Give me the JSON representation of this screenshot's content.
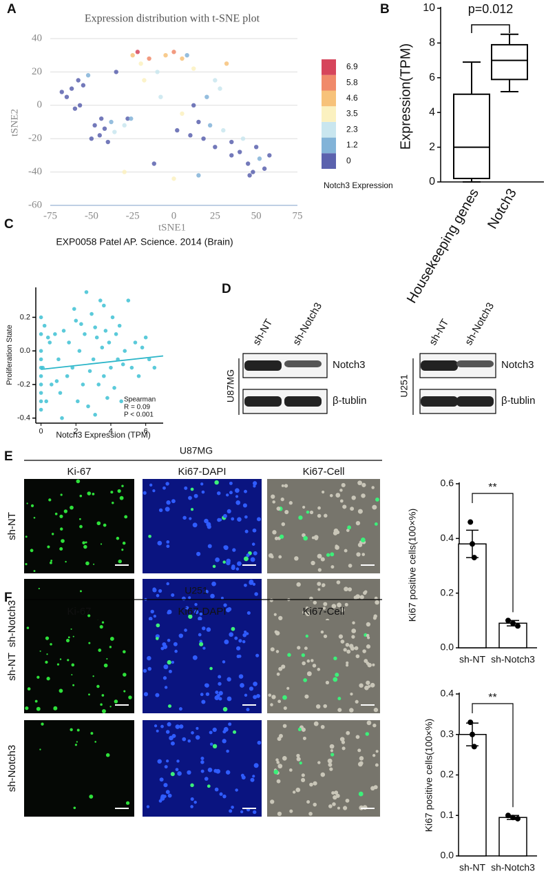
{
  "panel_labels": [
    "A",
    "B",
    "C",
    "D",
    "E",
    "F"
  ],
  "blot": {
    "lanes": [
      "sh-NT",
      "sh-Notch3"
    ],
    "proteins": [
      "Notch3",
      "β-tublin"
    ],
    "cell_lines": [
      "U87MG",
      "U251"
    ]
  },
  "imaging": [
    {
      "cell_line": "U87MG",
      "columns": [
        "Ki-67",
        "Ki67-DAPI",
        "Ki67-Cell"
      ],
      "rows": [
        "sh-NT",
        "sh-Notch3"
      ]
    },
    {
      "cell_line": "U251",
      "columns": [
        "Ki-67",
        "Ki67-DAPI",
        "Ki67-Cell"
      ],
      "rows": [
        "sh-NT",
        "sh-Notch3"
      ]
    }
  ],
  "chart_data": [
    {
      "type": "scatter",
      "title": "Expression distribution with t-SNE plot",
      "xlabel": "tSNE1",
      "ylabel": "tSNE2",
      "caption": "EXP0058 Patel AP. Science. 2014 (Brain)",
      "xlim": [
        -75,
        75
      ],
      "xticks": [
        -75,
        -50,
        -25,
        0,
        25,
        50,
        75
      ],
      "ylim": [
        -60,
        40
      ],
      "yticks": [
        -60,
        -40,
        -20,
        0,
        20,
        40
      ],
      "grid": true,
      "x": [
        -62,
        -58,
        -65,
        -55,
        -60,
        -52,
        -68,
        -57,
        -48,
        -45,
        -42,
        -38,
        -50,
        -44,
        -40,
        -36,
        -30,
        -28,
        -25,
        -22,
        -20,
        -15,
        -10,
        -5,
        0,
        5,
        8,
        12,
        15,
        -18,
        -8,
        2,
        10,
        18,
        22,
        25,
        30,
        35,
        5,
        12,
        20,
        28,
        35,
        40,
        45,
        48,
        52,
        55,
        50,
        46,
        58,
        42,
        -30,
        -12,
        0,
        15,
        32,
        -35,
        -26,
        25
      ],
      "y": [
        10,
        15,
        5,
        12,
        -2,
        18,
        8,
        0,
        -12,
        -18,
        -14,
        -10,
        -20,
        -8,
        -22,
        -16,
        -12,
        -8,
        30,
        32,
        25,
        28,
        20,
        30,
        32,
        28,
        30,
        22,
        -10,
        15,
        5,
        -15,
        -18,
        -20,
        -12,
        -25,
        -15,
        -22,
        -5,
        0,
        5,
        10,
        -30,
        -28,
        -35,
        -40,
        -32,
        -38,
        -25,
        -42,
        -30,
        -20,
        -40,
        -35,
        -44,
        -42,
        25,
        20,
        -8,
        15
      ],
      "values": [
        0,
        0.5,
        0,
        1,
        0,
        2,
        0,
        0,
        0,
        0.5,
        0,
        1.5,
        0,
        0,
        0,
        2.5,
        3,
        0,
        5,
        6.9,
        4,
        6,
        3,
        5.5,
        6.2,
        4.8,
        2,
        3.6,
        0,
        4,
        2.8,
        0,
        0.8,
        0,
        1.5,
        0,
        2.4,
        0,
        3.8,
        0,
        1.3,
        2.5,
        0,
        0.6,
        0,
        0,
        1.4,
        0,
        0,
        0,
        0.5,
        2.3,
        3.7,
        1,
        4.5,
        2,
        5,
        0,
        1.2,
        3
      ],
      "colorbar": {
        "label": "Notch3 Expression",
        "ticks": [
          0,
          1.2,
          2.3,
          3.5,
          4.6,
          5.8,
          6.9
        ],
        "colors": [
          "#5b62ae",
          "#82b3d8",
          "#c9e6ef",
          "#fbf1c0",
          "#f7c27a",
          "#f08a6a",
          "#d6455b"
        ]
      }
    },
    {
      "type": "box",
      "ylabel": "Expression(TPM)",
      "categories": [
        "Housekeeping genes",
        "Notch3"
      ],
      "ylim": [
        0,
        10
      ],
      "yticks": [
        0,
        2,
        4,
        6,
        8,
        10
      ],
      "annotation": "p=0.012",
      "boxes": [
        {
          "min": 0,
          "q1": 0.2,
          "median": 2,
          "q3": 5.05,
          "max": 6.9
        },
        {
          "min": 5.2,
          "q1": 5.9,
          "median": 7,
          "q3": 7.9,
          "max": 8.5
        }
      ]
    },
    {
      "type": "scatter",
      "xlabel": "Notch3 Expression (TPM)",
      "ylabel": "Proliferation State",
      "xlim": [
        -0.3,
        7
      ],
      "xticks": [
        0,
        2,
        4,
        6
      ],
      "ylim": [
        -0.43,
        0.37
      ],
      "yticks": [
        -0.4,
        -0.2,
        {
          "value": 0,
          "label": "0.0"
        },
        0.2
      ],
      "color": "#3ec1d3",
      "annotations": [
        "Spearman",
        "R = 0.09",
        "P < 0.001"
      ],
      "x": [
        0,
        0,
        0,
        0,
        0,
        0,
        0,
        0,
        0,
        0,
        0.2,
        0.3,
        0.5,
        0.6,
        0.8,
        1.0,
        1.1,
        1.3,
        1.5,
        1.6,
        1.8,
        2.0,
        2.1,
        2.2,
        2.4,
        2.5,
        2.6,
        2.8,
        2.9,
        3.0,
        3.1,
        3.2,
        3.3,
        3.4,
        3.5,
        3.6,
        3.7,
        3.8,
        3.9,
        4.0,
        4.1,
        4.2,
        4.3,
        4.4,
        4.5,
        4.6,
        4.8,
        5.0,
        5.2,
        5.4,
        5.6,
        5.8,
        6.0,
        6.2,
        6.5,
        0.1,
        0.4,
        1.2,
        1.9,
        2.7,
        3.1,
        3.6,
        4.7,
        0.9,
        2.3
      ],
      "y": [
        0.2,
        0.1,
        0,
        -0.05,
        -0.1,
        -0.15,
        -0.2,
        -0.25,
        -0.3,
        -0.35,
        0.15,
        -0.3,
        0.05,
        -0.2,
        0.1,
        -0.05,
        -0.25,
        0.12,
        -0.15,
        0.05,
        -0.1,
        0.18,
        -0.3,
        0,
        -0.2,
        0.1,
        0.35,
        -0.12,
        0.22,
        -0.05,
        -0.38,
        0.08,
        -0.2,
        0.3,
        0.02,
        -0.15,
        0.12,
        -0.28,
        0.05,
        -0.1,
        0.2,
        -0.22,
        0.1,
        -0.05,
        0.15,
        -0.3,
        0,
        0.3,
        -0.1,
        0.05,
        -0.15,
        0.02,
        0.08,
        -0.05,
        -0.1,
        -0.1,
        0.08,
        -0.4,
        0.25,
        -0.33,
        0.14,
        0.27,
        -0.08,
        -0.18,
        0.16
      ],
      "fit": {
        "x": [
          0,
          7
        ],
        "y": [
          -0.11,
          -0.03
        ],
        "color": "#2bb5c8"
      }
    },
    {
      "type": "bar",
      "ylabel": "Ki67 positive cells(100×%)",
      "categories": [
        "sh-NT",
        "sh-Notch3"
      ],
      "values": [
        0.38,
        0.09
      ],
      "errors": [
        0.05,
        0.01
      ],
      "points": [
        [
          0.46,
          0.38,
          0.33
        ],
        [
          0.1,
          0.09,
          0.08
        ]
      ],
      "ylim": [
        0,
        0.6
      ],
      "yticks": [
        {
          "value": 0,
          "label": "0.0"
        },
        0.2,
        0.4,
        0.6
      ],
      "annotation": "**"
    },
    {
      "type": "bar",
      "ylabel": "Ki67 positive cells(100×%)",
      "categories": [
        "sh-NT",
        "sh-Notch3"
      ],
      "values": [
        0.3,
        0.095
      ],
      "errors": [
        0.028,
        0.005
      ],
      "points": [
        [
          0.33,
          0.3,
          0.27
        ],
        [
          0.1,
          0.095,
          0.092
        ]
      ],
      "ylim": [
        0,
        0.4
      ],
      "yticks": [
        {
          "value": 0,
          "label": "0.0"
        },
        0.1,
        0.2,
        0.3,
        0.4
      ],
      "annotation": "**"
    }
  ]
}
